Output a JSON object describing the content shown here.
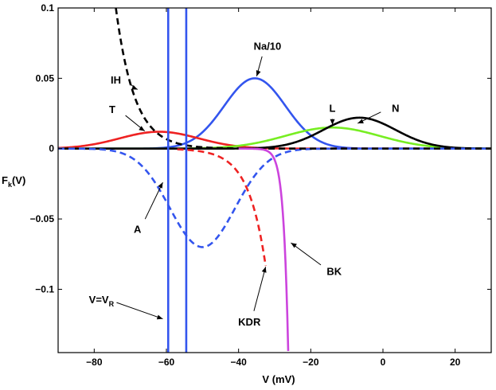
{
  "chart_data": {
    "type": "line",
    "title": "",
    "xlabel": "V (mV)",
    "ylabel_main": "F",
    "ylabel_sub": "k",
    "ylabel_tail": "(V)",
    "xlim": [
      -90,
      30
    ],
    "ylim": [
      -0.145,
      0.1
    ],
    "xticks": [
      -80,
      -60,
      -40,
      -20,
      0,
      20
    ],
    "xtick_labels": [
      "−80",
      "−60",
      "−40",
      "−20",
      "0",
      "20"
    ],
    "yticks": [
      0.1,
      0.05,
      0,
      -0.05,
      -0.1
    ],
    "ytick_labels": [
      "0.1",
      "0.05",
      "0",
      "−0.05",
      "−0.1"
    ],
    "grid": false,
    "vertical_lines": [
      {
        "x": -59.5,
        "color": "#3355ee"
      },
      {
        "x": -54.5,
        "color": "#3355ee"
      }
    ],
    "series": [
      {
        "name": "Na/10",
        "color": "#3355ee",
        "style": "solid",
        "kind": "gauss",
        "amp": 0.05,
        "mu": -35.5,
        "sigma": 8.5
      },
      {
        "name": "T",
        "color": "#ee2222",
        "style": "solid",
        "kind": "gauss",
        "amp": 0.012,
        "mu": -62,
        "sigma": 11
      },
      {
        "name": "L",
        "color": "#77ee22",
        "style": "solid",
        "kind": "gauss",
        "amp": 0.015,
        "mu": -14,
        "sigma": 13
      },
      {
        "name": "N",
        "color": "#000000",
        "style": "solid",
        "kind": "gauss",
        "amp": 0.022,
        "mu": -6.5,
        "sigma": 10
      },
      {
        "name": "A",
        "color": "#3355ee",
        "style": "dashed",
        "kind": "gauss",
        "amp": -0.07,
        "mu": -50,
        "sigma": 9
      },
      {
        "name": "IH",
        "color": "#000000",
        "style": "dashed",
        "kind": "exp",
        "y0": 0.1,
        "x0": -74,
        "scale": 5.2,
        "xmin": -74
      },
      {
        "name": "KDR",
        "color": "#ee2222",
        "style": "dashed",
        "kind": "neg_exp",
        "x0": -48,
        "scale": 4.8,
        "coef": -0.0033,
        "xmin": -57,
        "xmax": -32.5
      },
      {
        "name": "BK",
        "color": "#cc44dd",
        "style": "solid",
        "kind": "neg_exp",
        "x0": -33,
        "scale": 1.3,
        "coef": -0.0008,
        "xmin": -40,
        "xmax": -24.5
      }
    ],
    "annotations": [
      {
        "text": "Na/10",
        "tx": -32,
        "ty": 0.073,
        "ax": -35,
        "ay": 0.0515
      },
      {
        "text": "IH",
        "tx": -74,
        "ty": 0.049,
        "ax": -68,
        "ay": 0.042
      },
      {
        "text": "T",
        "tx": -75,
        "ty": 0.028,
        "ax": -66,
        "ay": 0.0125
      },
      {
        "text": "L",
        "tx": -14,
        "ty": 0.029,
        "ax": -14,
        "ay": 0.017
      },
      {
        "text": "N",
        "tx": 3.5,
        "ty": 0.029,
        "ax": -7,
        "ay": 0.018
      },
      {
        "text": "A",
        "tx": -68,
        "ty": -0.057,
        "ax": -61,
        "ay": -0.024
      },
      {
        "text": "BK",
        "tx": -13.5,
        "ty": -0.087,
        "ax": -25.5,
        "ay": -0.067
      },
      {
        "text": "KDR",
        "tx": -37,
        "ty": -0.123,
        "ax": -32.5,
        "ay": -0.084
      },
      {
        "text": "V=V",
        "sub": "R",
        "tx": -78,
        "ty": -0.107,
        "ax": -61,
        "ay": -0.121
      }
    ]
  }
}
